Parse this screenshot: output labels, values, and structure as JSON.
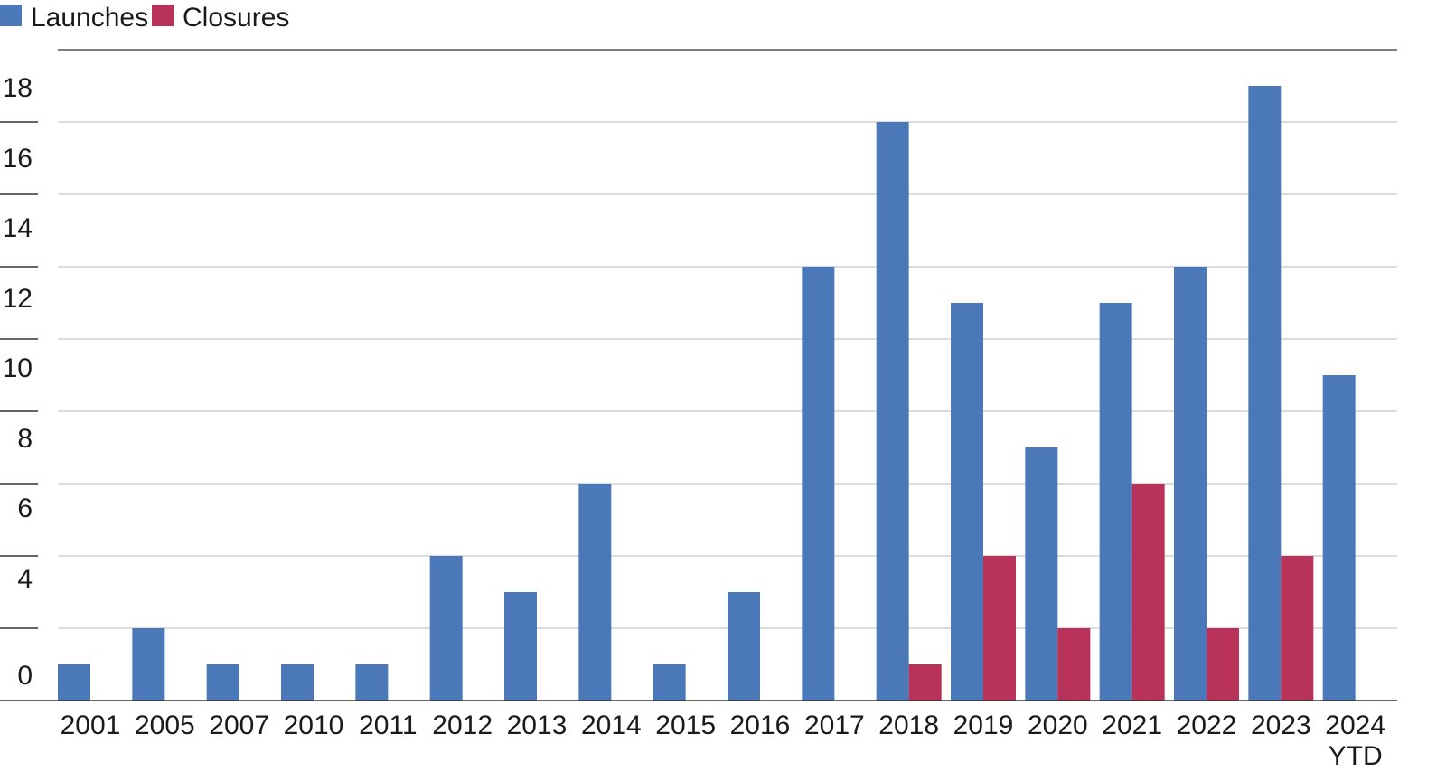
{
  "chart_data": {
    "type": "bar",
    "categories": [
      "2001",
      "2005",
      "2007",
      "2010",
      "2011",
      "2012",
      "2013",
      "2014",
      "2015",
      "2016",
      "2017",
      "2018",
      "2019",
      "2020",
      "2021",
      "2022",
      "2023",
      "2024\nYTD"
    ],
    "series": [
      {
        "name": "Launches",
        "color": "#4a78b8",
        "values": [
          1,
          2,
          1,
          1,
          1,
          4,
          3,
          6,
          1,
          3,
          12,
          16,
          11,
          7,
          11,
          12,
          17,
          9
        ]
      },
      {
        "name": "Closures",
        "color": "#b8325a",
        "values": [
          0,
          0,
          0,
          0,
          0,
          0,
          0,
          0,
          0,
          0,
          0,
          1,
          4,
          2,
          6,
          2,
          4,
          0
        ]
      }
    ],
    "yticks": [
      0,
      4,
      6,
      8,
      10,
      12,
      14,
      16,
      18
    ],
    "ylim": [
      0,
      18
    ],
    "grid": true,
    "legend_position": "top-left",
    "title": "",
    "xlabel": "",
    "ylabel": ""
  }
}
